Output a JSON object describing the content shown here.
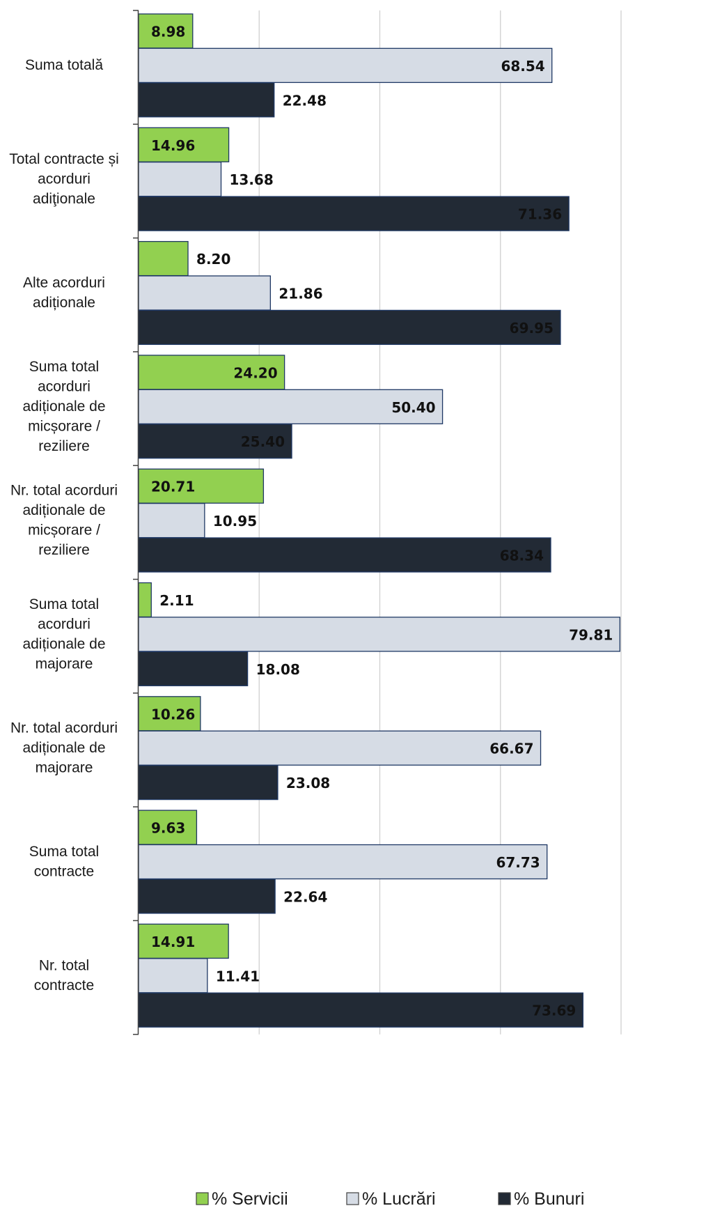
{
  "chart_data": {
    "type": "bar",
    "orientation": "horizontal",
    "categories": [
      "Suma totală",
      "Total contracte și acorduri adiţionale",
      "Alte acorduri adiționale",
      "Suma total acorduri adiționale de micșorare / reziliere",
      "Nr. total acorduri adiționale de micșorare / reziliere",
      "Suma total acorduri adiționale de majorare",
      "Nr. total acorduri adiționale de majorare",
      "Suma total contracte",
      "Nr. total contracte"
    ],
    "category_lines": [
      [
        "Suma totală"
      ],
      [
        "Total contracte și",
        "acorduri",
        "adiţionale"
      ],
      [
        "Alte acorduri",
        "adiționale"
      ],
      [
        "Suma total",
        "acorduri",
        "adiționale de",
        "micșorare /",
        "reziliere"
      ],
      [
        "Nr. total acorduri",
        "adiționale de",
        "micșorare /",
        "reziliere"
      ],
      [
        "Suma total",
        "acorduri",
        "adiționale de",
        "majorare"
      ],
      [
        "Nr. total acorduri",
        "adiționale de",
        "majorare"
      ],
      [
        "Suma total",
        "contracte"
      ],
      [
        "Nr. total",
        "contracte"
      ]
    ],
    "series": [
      {
        "name": "% Servicii",
        "color": "#92d050",
        "values": [
          "8.98",
          "14.96",
          "8.20",
          "24.20",
          "20.71",
          "2.11",
          "10.26",
          "9.63",
          "14.91"
        ]
      },
      {
        "name": "% Lucrări",
        "color": "#d6dce5",
        "values": [
          "68.54",
          "13.68",
          "21.86",
          "50.40",
          "10.95",
          "79.81",
          "66.67",
          "67.73",
          "11.41"
        ]
      },
      {
        "name": "% Bunuri",
        "color": "#222a35",
        "values": [
          "22.48",
          "71.36",
          "69.95",
          "25.40",
          "68.34",
          "18.08",
          "23.08",
          "22.64",
          "73.69"
        ]
      }
    ],
    "xlim": [
      0,
      80
    ],
    "grid": true,
    "legend": "bottom",
    "title": "",
    "xlabel": "",
    "ylabel": "",
    "bar_outline_color": "#1f3864",
    "grid_color": "#d0d0d0",
    "axis_color": "#404040"
  }
}
